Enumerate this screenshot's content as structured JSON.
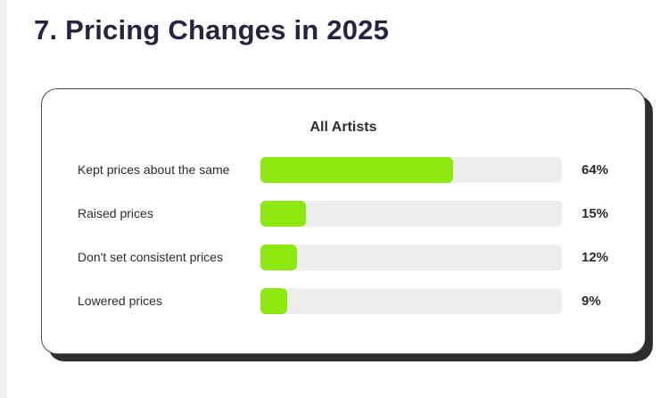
{
  "page": {
    "title": "7. Pricing Changes in 2025"
  },
  "card": {
    "header": "All Artists"
  },
  "chart_data": {
    "type": "bar",
    "orientation": "horizontal",
    "title": "All Artists",
    "categories": [
      "Kept prices about the same",
      "Raised prices",
      "Don't set consistent prices",
      "Lowered prices"
    ],
    "values": [
      64,
      15,
      12,
      9
    ],
    "value_labels": [
      "64%",
      "15%",
      "12%",
      "9%"
    ],
    "xlim": [
      0,
      100
    ],
    "grid": false,
    "legend": "none",
    "bar_color": "#8ce80d",
    "track_color": "#ededed"
  },
  "colors": {
    "title_text": "#2b2140",
    "body_text": "#2b2b2b",
    "bar_green": "#8ce80d",
    "bar_track": "#ededed",
    "card_border": "#4a4a4a",
    "card_shadow": "#2e2e2e"
  }
}
